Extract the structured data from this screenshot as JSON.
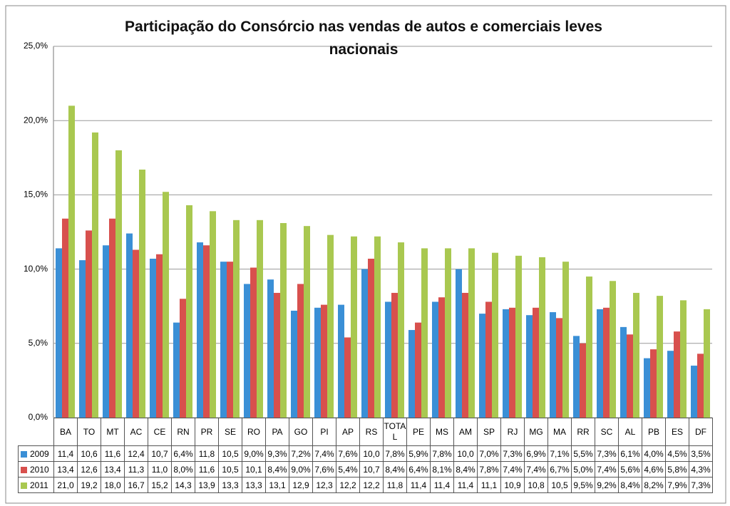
{
  "chart_data": {
    "type": "bar",
    "title": "Participação do Consórcio nas vendas de autos e comerciais leves nacionais",
    "categories": [
      "BA",
      "TO",
      "MT",
      "AC",
      "CE",
      "RN",
      "PR",
      "SE",
      "RO",
      "PA",
      "GO",
      "PI",
      "AP",
      "RS",
      "TOTAL",
      "PE",
      "MS",
      "AM",
      "SP",
      "RJ",
      "MG",
      "MA",
      "RR",
      "SC",
      "AL",
      "PB",
      "ES",
      "DF"
    ],
    "series": [
      {
        "name": "2009",
        "color": "#3a8fd6",
        "values": [
          11.4,
          10.6,
          11.6,
          12.4,
          10.7,
          6.4,
          11.8,
          10.5,
          9.0,
          9.3,
          7.2,
          7.4,
          7.6,
          10.0,
          7.8,
          5.9,
          7.8,
          10.0,
          7.0,
          7.3,
          6.9,
          7.1,
          5.5,
          7.3,
          6.1,
          4.0,
          4.5,
          3.5
        ],
        "value_labels": [
          "11,4",
          "10,6",
          "11,6",
          "12,4",
          "10,7",
          "6,4%",
          "11,8",
          "10,5",
          "9,0%",
          "9,3%",
          "7,2%",
          "7,4%",
          "7,6%",
          "10,0",
          "7,8%",
          "5,9%",
          "7,8%",
          "10,0",
          "7,0%",
          "7,3%",
          "6,9%",
          "7,1%",
          "5,5%",
          "7,3%",
          "6,1%",
          "4,0%",
          "4,5%",
          "3,5%"
        ]
      },
      {
        "name": "2010",
        "color": "#d8504d",
        "values": [
          13.4,
          12.6,
          13.4,
          11.3,
          11.0,
          8.0,
          11.6,
          10.5,
          10.1,
          8.4,
          9.0,
          7.6,
          5.4,
          10.7,
          8.4,
          6.4,
          8.1,
          8.4,
          7.8,
          7.4,
          7.4,
          6.7,
          5.0,
          7.4,
          5.6,
          4.6,
          5.8,
          4.3
        ],
        "value_labels": [
          "13,4",
          "12,6",
          "13,4",
          "11,3",
          "11,0",
          "8,0%",
          "11,6",
          "10,5",
          "10,1",
          "8,4%",
          "9,0%",
          "7,6%",
          "5,4%",
          "10,7",
          "8,4%",
          "6,4%",
          "8,1%",
          "8,4%",
          "7,8%",
          "7,4%",
          "7,4%",
          "6,7%",
          "5,0%",
          "7,4%",
          "5,6%",
          "4,6%",
          "5,8%",
          "4,3%"
        ]
      },
      {
        "name": "2011",
        "color": "#a9c850",
        "values": [
          21.0,
          19.2,
          18.0,
          16.7,
          15.2,
          14.3,
          13.9,
          13.3,
          13.3,
          13.1,
          12.9,
          12.3,
          12.2,
          12.2,
          11.8,
          11.4,
          11.4,
          11.4,
          11.1,
          10.9,
          10.8,
          10.5,
          9.5,
          9.2,
          8.4,
          8.2,
          7.9,
          7.3
        ],
        "value_labels": [
          "21,0",
          "19,2",
          "18,0",
          "16,7",
          "15,2",
          "14,3",
          "13,9",
          "13,3",
          "13,3",
          "13,1",
          "12,9",
          "12,3",
          "12,2",
          "12,2",
          "11,8",
          "11,4",
          "11,4",
          "11,4",
          "11,1",
          "10,9",
          "10,8",
          "10,5",
          "9,5%",
          "9,2%",
          "8,4%",
          "8,2%",
          "7,9%",
          "7,3%"
        ]
      }
    ],
    "ylim": [
      0,
      25
    ],
    "yticks": [
      {
        "value": 0,
        "label": "0,0%"
      },
      {
        "value": 5,
        "label": "5,0%"
      },
      {
        "value": 10,
        "label": "10,0%"
      },
      {
        "value": 15,
        "label": "15,0%"
      },
      {
        "value": 20,
        "label": "20,0%"
      },
      {
        "value": 25,
        "label": "25,0%"
      }
    ],
    "grid": true
  }
}
